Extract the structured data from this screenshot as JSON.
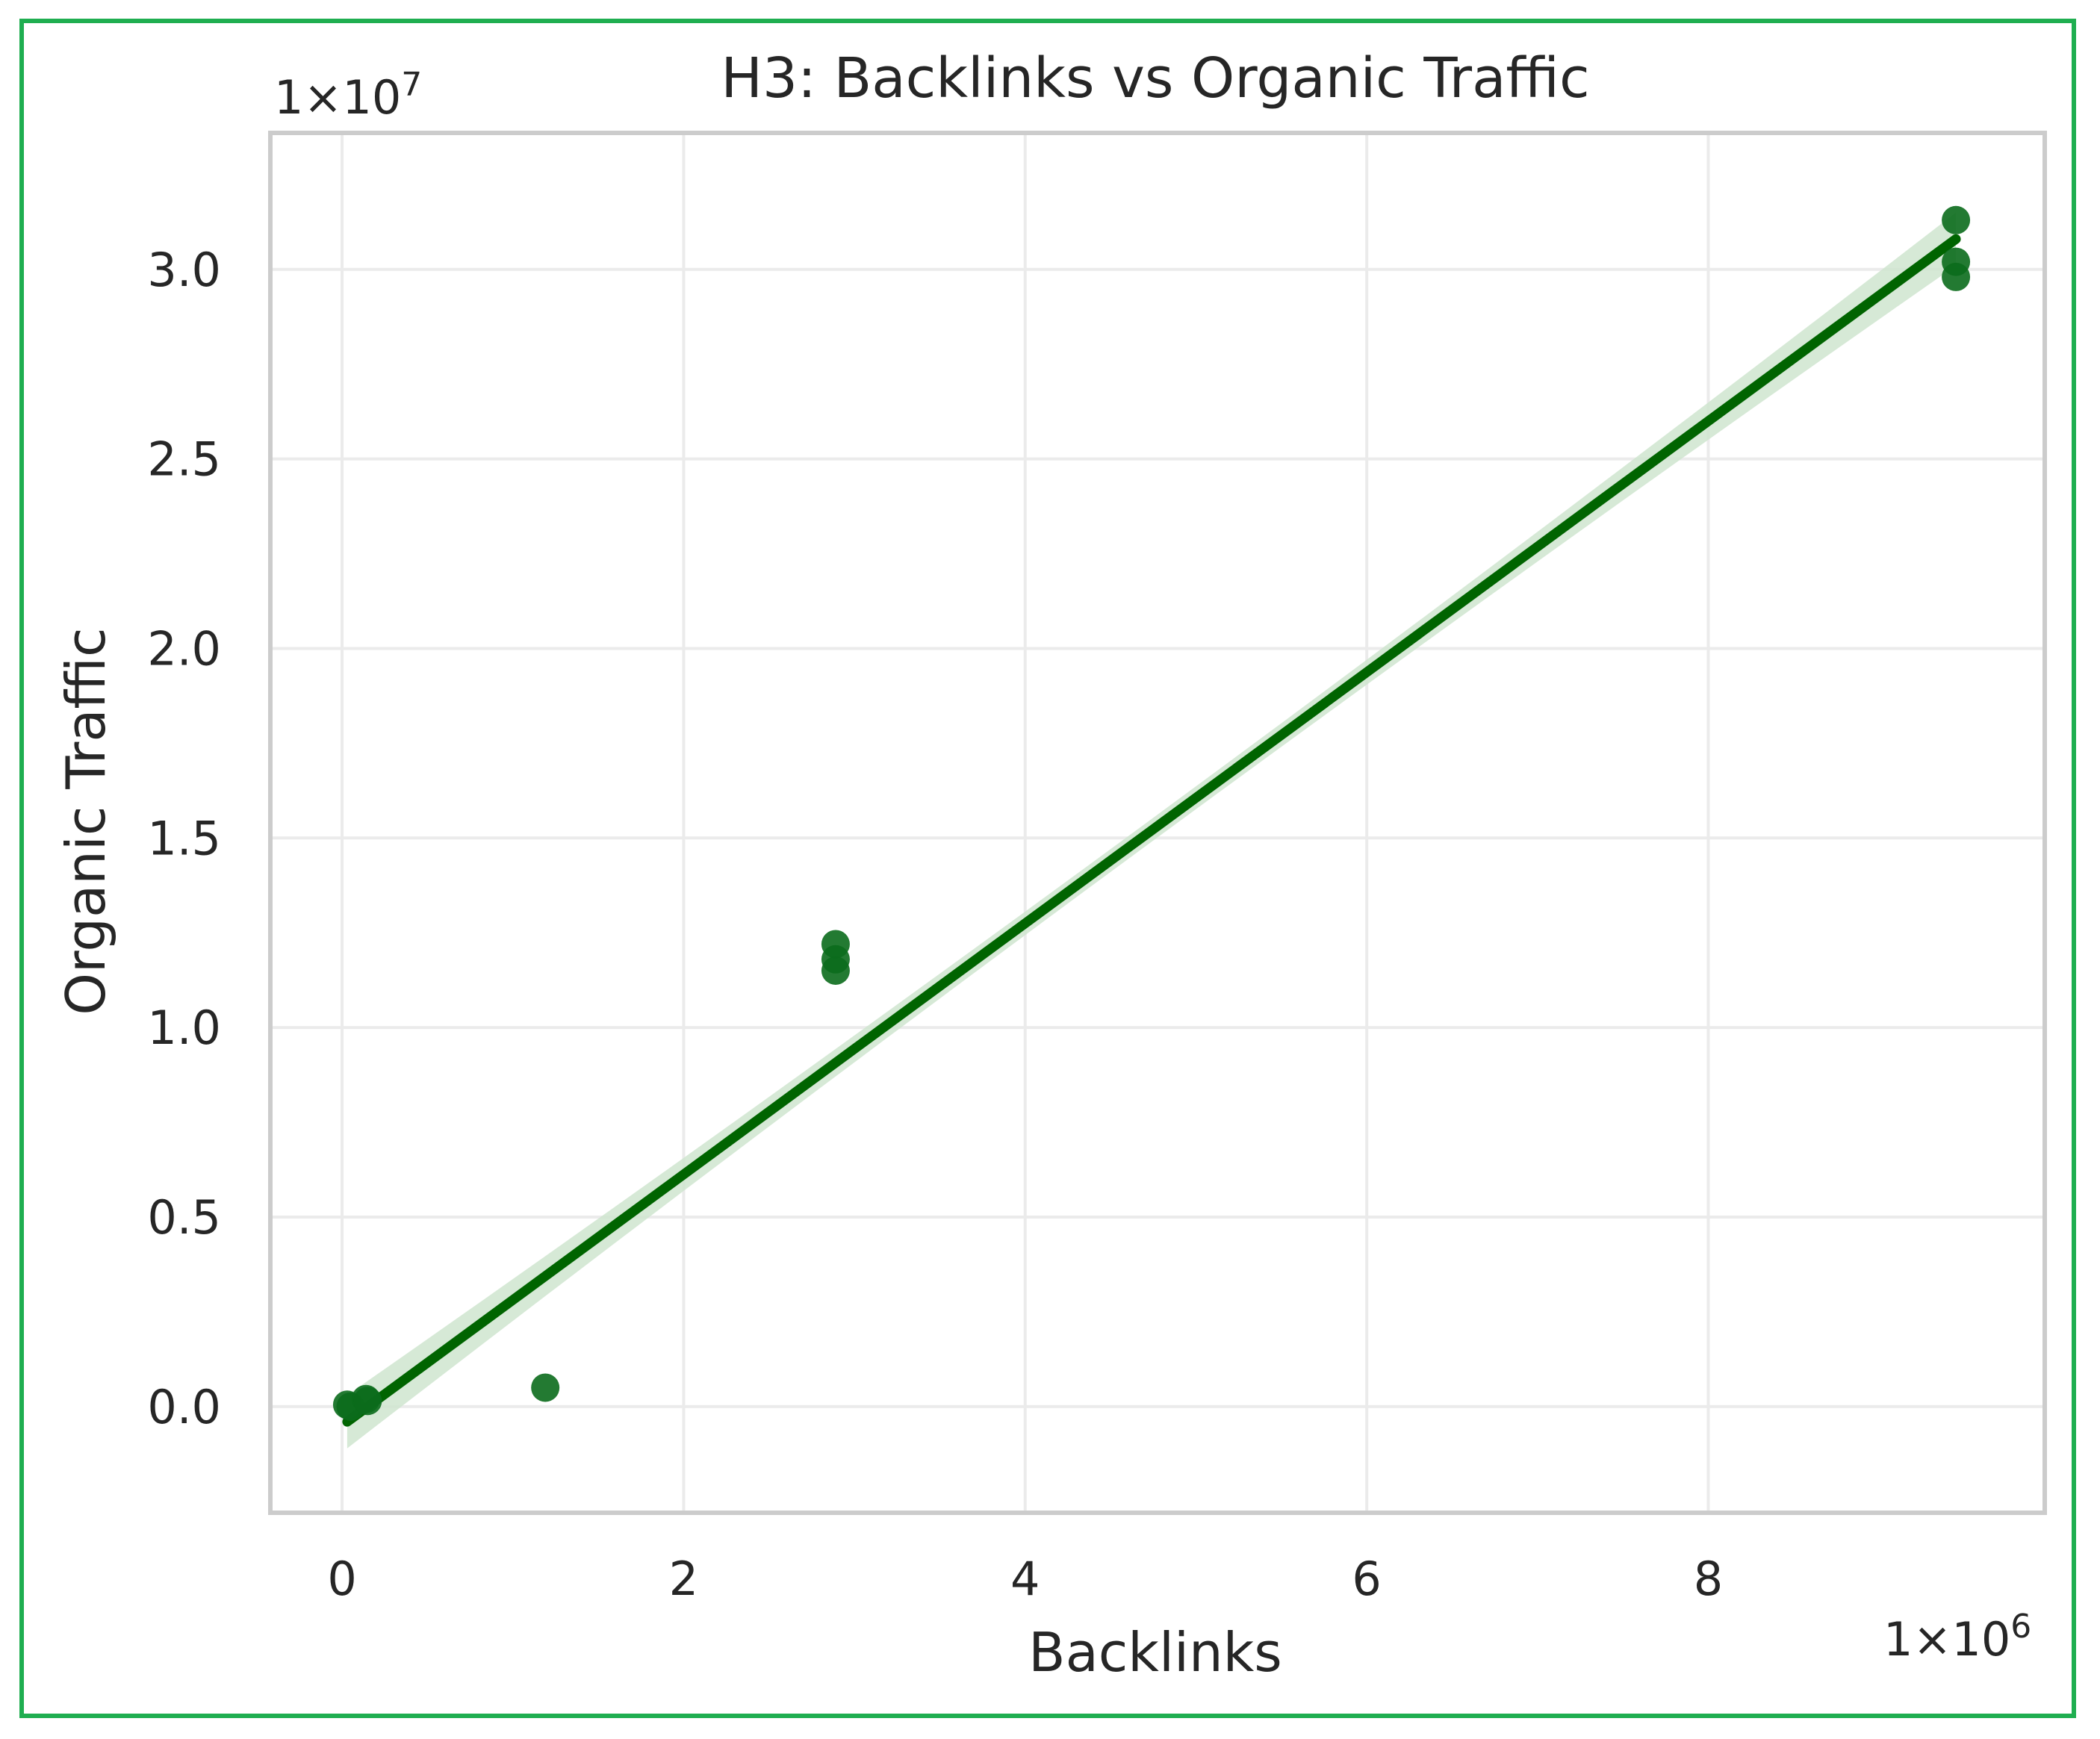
{
  "chart_data": {
    "type": "scatter",
    "title": "H3: Backlinks vs Organic Traffic",
    "xlabel": "Backlinks",
    "ylabel": "Organic Traffic",
    "x_offset_label": "1×10",
    "x_offset_exp": "6",
    "y_offset_label": "1×10",
    "y_offset_exp": "7",
    "xlim": [
      -0.42,
      9.97
    ],
    "ylim": [
      -0.28,
      3.36
    ],
    "x_scale_factor": 1000000,
    "y_scale_factor": 10000000,
    "x_ticks": [
      0,
      2,
      4,
      6,
      8
    ],
    "x_tick_labels": [
      "0",
      "2",
      "4",
      "6",
      "8"
    ],
    "y_ticks": [
      0.0,
      0.5,
      1.0,
      1.5,
      2.0,
      2.5,
      3.0
    ],
    "y_tick_labels": [
      "0.0",
      "0.5",
      "1.0",
      "1.5",
      "2.0",
      "2.5",
      "3.0"
    ],
    "grid": true,
    "points": [
      {
        "x": 0.03,
        "y": 0.005
      },
      {
        "x": 0.05,
        "y": 0.0
      },
      {
        "x": 0.14,
        "y": 0.02
      },
      {
        "x": 0.15,
        "y": 0.015
      },
      {
        "x": 1.19,
        "y": 0.05
      },
      {
        "x": 2.89,
        "y": 1.22
      },
      {
        "x": 2.89,
        "y": 1.18
      },
      {
        "x": 2.89,
        "y": 1.15
      },
      {
        "x": 9.45,
        "y": 3.13
      },
      {
        "x": 9.45,
        "y": 3.02
      },
      {
        "x": 9.45,
        "y": 2.98
      }
    ],
    "regression": {
      "x": [
        0.03,
        9.45
      ],
      "y": [
        -0.04,
        3.08
      ],
      "ci_half_width_ends": 0.07,
      "ci_half_width_mid": 0.03
    },
    "colors": {
      "points": "#0b6b1c",
      "line": "#006400",
      "ci_band": "#cfe5cf",
      "frame_border": "#1fae50",
      "axes_border": "#cccccc"
    }
  }
}
